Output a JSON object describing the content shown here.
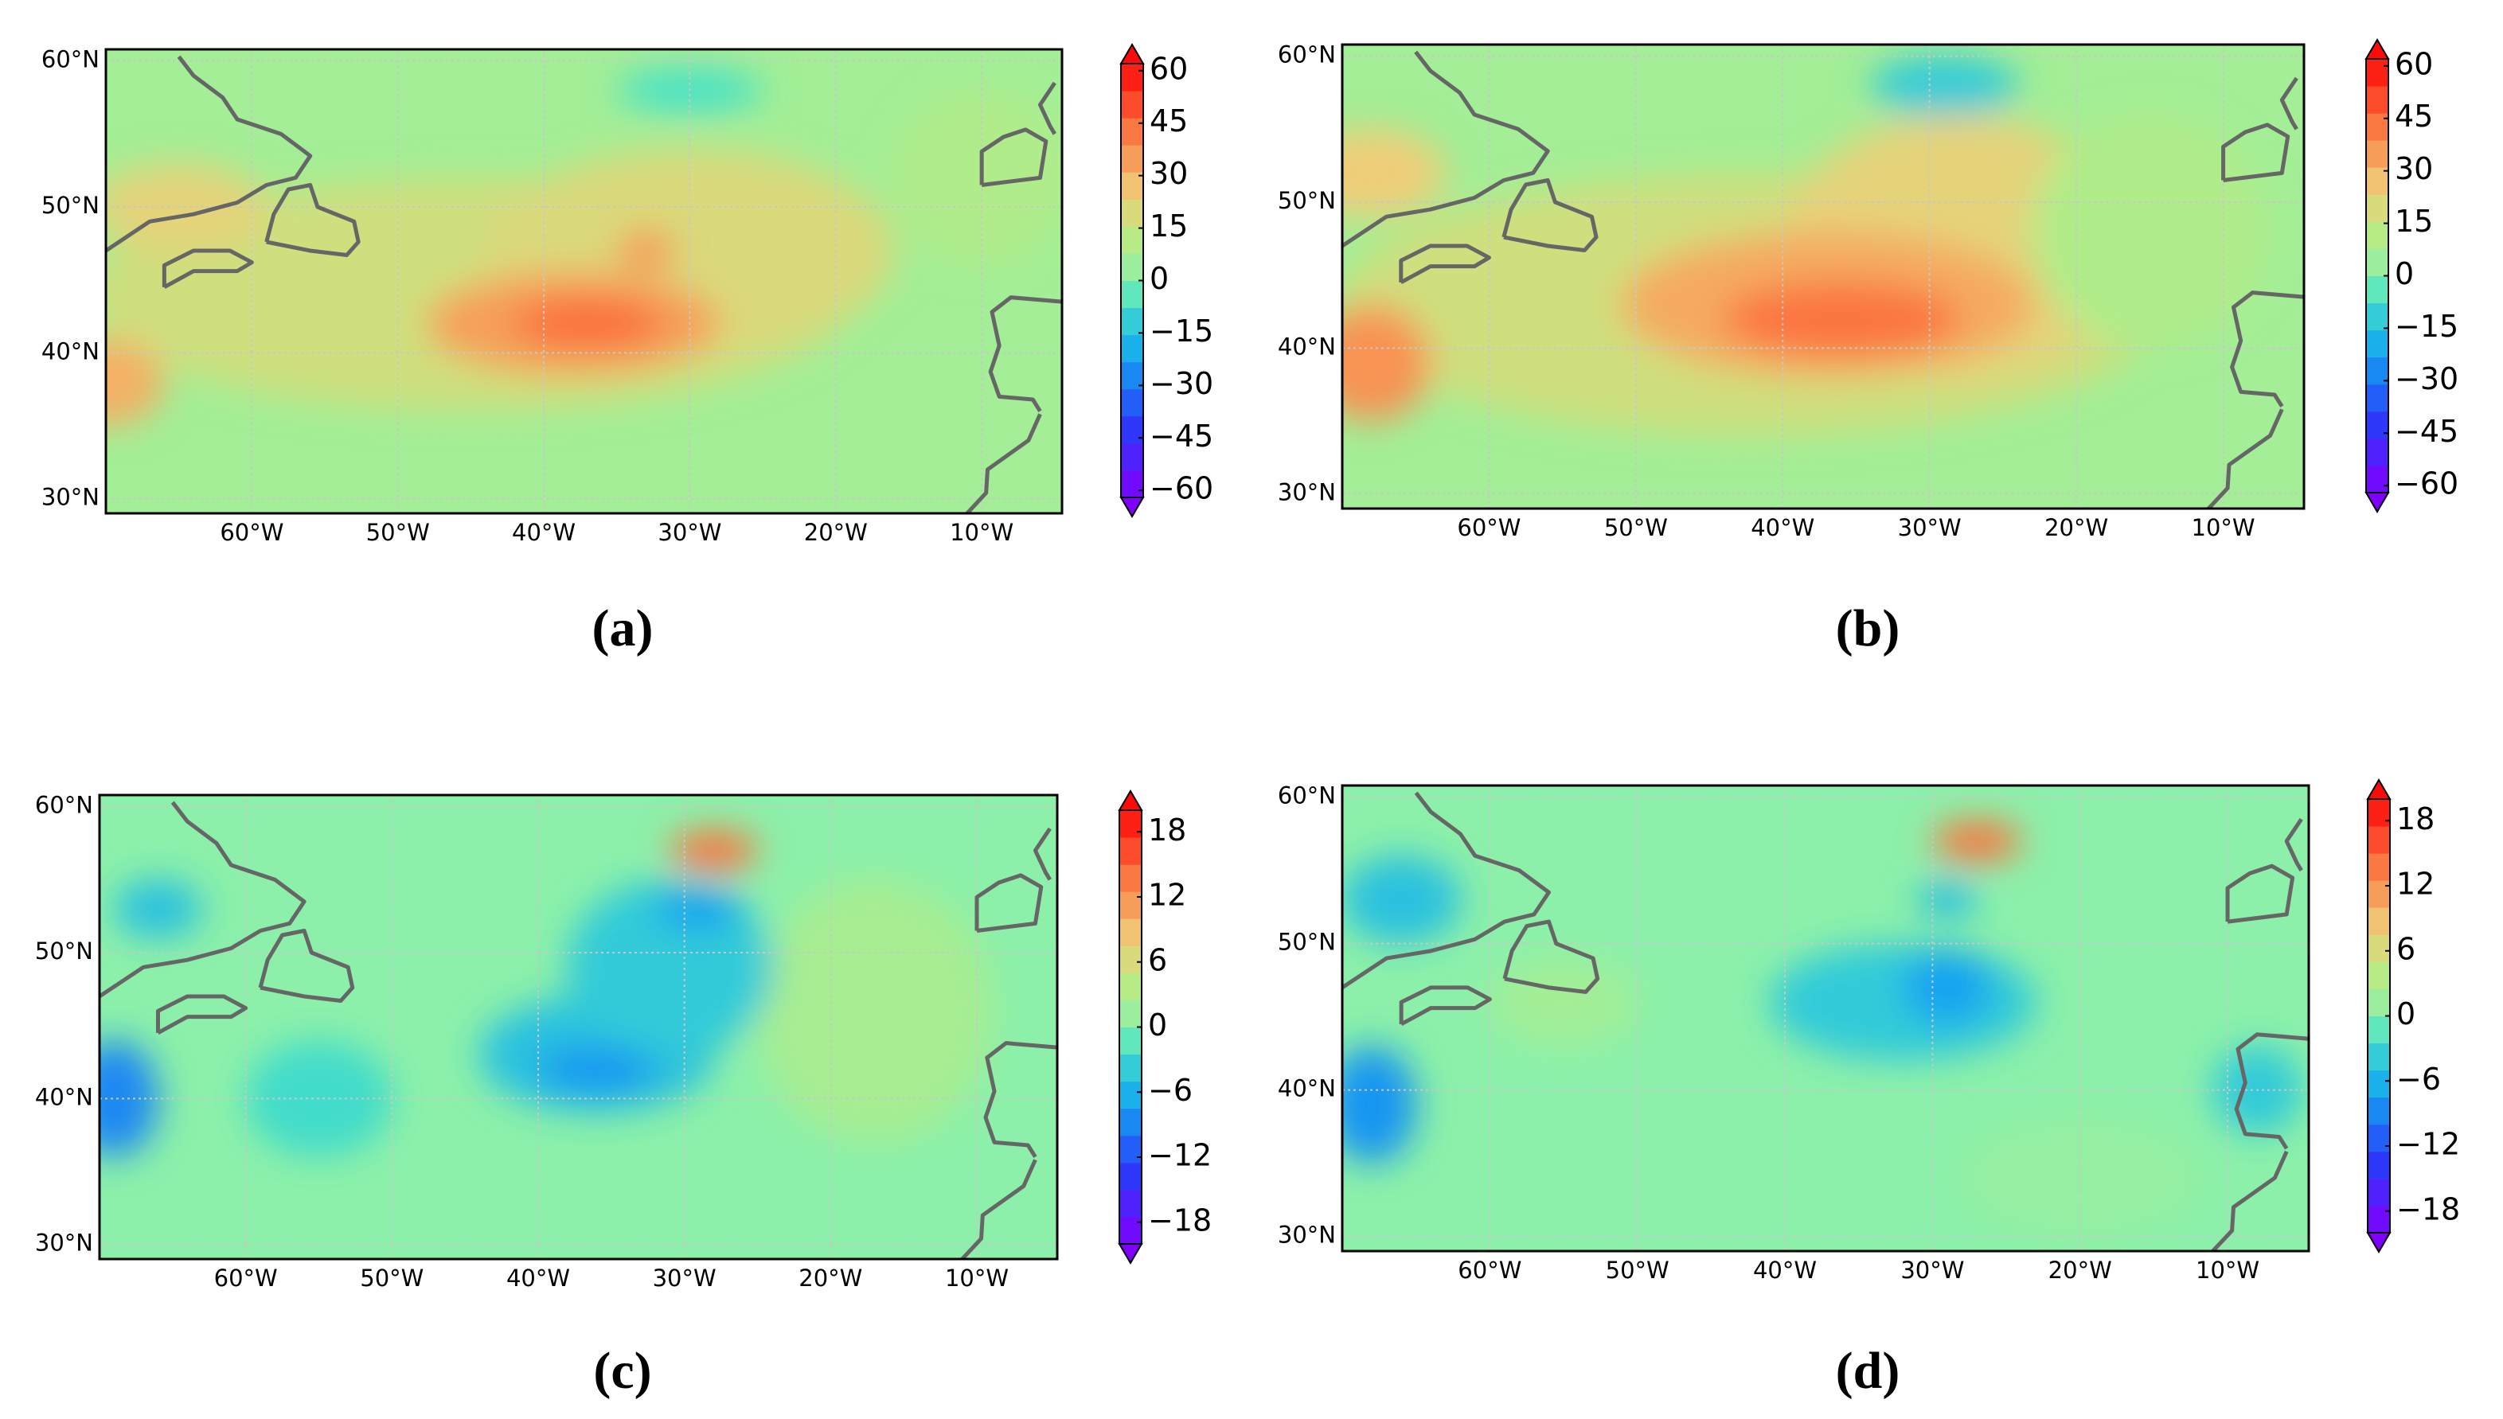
{
  "panels": [
    {
      "label": "(a)",
      "lat_range": [
        29,
        60.8
      ],
      "lon_range": [
        -70,
        -4.5
      ],
      "lat_ticks": [
        {
          "value": 30,
          "label": "30°N"
        },
        {
          "value": 40,
          "label": "40°N"
        },
        {
          "value": 50,
          "label": "50°N"
        },
        {
          "value": 60,
          "label": "60°N"
        }
      ],
      "lon_ticks": [
        {
          "value": -60,
          "label": "60°W"
        },
        {
          "value": -50,
          "label": "50°W"
        },
        {
          "value": -40,
          "label": "40°W"
        },
        {
          "value": -30,
          "label": "30°W"
        },
        {
          "value": -20,
          "label": "20°W"
        },
        {
          "value": -10,
          "label": "10°W"
        }
      ],
      "colorbar": {
        "range": [
          -62,
          62
        ],
        "ticks": [
          {
            "value": -60,
            "label": "−60"
          },
          {
            "value": -45,
            "label": "−45"
          },
          {
            "value": -30,
            "label": "−30"
          },
          {
            "value": -15,
            "label": "−15"
          },
          0,
          15,
          30,
          45,
          60
        ]
      }
    },
    {
      "label": "(b)",
      "lat_range": [
        29,
        60.8
      ],
      "lon_range": [
        -70,
        -4.5
      ],
      "lat_ticks": [
        {
          "value": 30,
          "label": "30°N"
        },
        {
          "value": 40,
          "label": "40°N"
        },
        {
          "value": 50,
          "label": "50°N"
        },
        {
          "value": 60,
          "label": "60°N"
        }
      ],
      "lon_ticks": [
        {
          "value": -60,
          "label": "60°W"
        },
        {
          "value": -50,
          "label": "50°W"
        },
        {
          "value": -40,
          "label": "40°W"
        },
        {
          "value": -30,
          "label": "30°W"
        },
        {
          "value": -20,
          "label": "20°W"
        },
        {
          "value": -10,
          "label": "10°W"
        }
      ],
      "colorbar": {
        "range": [
          -62,
          62
        ],
        "ticks": [
          {
            "value": -60,
            "label": "−60"
          },
          {
            "value": -45,
            "label": "−45"
          },
          {
            "value": -30,
            "label": "−30"
          },
          {
            "value": -15,
            "label": "−15"
          },
          0,
          15,
          30,
          45,
          60
        ]
      }
    },
    {
      "label": "(c)",
      "lat_range": [
        29,
        60.8
      ],
      "lon_range": [
        -70,
        -4.5
      ],
      "lat_ticks": [
        {
          "value": 30,
          "label": "30°N"
        },
        {
          "value": 40,
          "label": "40°N"
        },
        {
          "value": 50,
          "label": "50°N"
        },
        {
          "value": 60,
          "label": "60°N"
        }
      ],
      "lon_ticks": [
        {
          "value": -60,
          "label": "60°W"
        },
        {
          "value": -50,
          "label": "50°W"
        },
        {
          "value": -40,
          "label": "40°W"
        },
        {
          "value": -30,
          "label": "30°W"
        },
        {
          "value": -20,
          "label": "20°W"
        },
        {
          "value": -10,
          "label": "10°W"
        }
      ],
      "colorbar": {
        "range": [
          -20,
          20
        ],
        "ticks": [
          {
            "value": -18,
            "label": "−18"
          },
          {
            "value": -12,
            "label": "−12"
          },
          {
            "value": -6,
            "label": "−6"
          },
          0,
          6,
          12,
          18
        ]
      }
    },
    {
      "label": "(d)",
      "lat_range": [
        29,
        60.8
      ],
      "lon_range": [
        -70,
        -4.5
      ],
      "lat_ticks": [
        {
          "value": 30,
          "label": "30°N"
        },
        {
          "value": 40,
          "label": "40°N"
        },
        {
          "value": 50,
          "label": "50°N"
        },
        {
          "value": 60,
          "label": "60°N"
        }
      ],
      "lon_ticks": [
        {
          "value": -60,
          "label": "60°W"
        },
        {
          "value": -50,
          "label": "50°W"
        },
        {
          "value": -40,
          "label": "40°W"
        },
        {
          "value": -30,
          "label": "30°W"
        },
        {
          "value": -20,
          "label": "20°W"
        },
        {
          "value": -10,
          "label": "10°W"
        }
      ],
      "colorbar": {
        "range": [
          -20,
          20
        ],
        "ticks": [
          {
            "value": -18,
            "label": "−18"
          },
          {
            "value": -12,
            "label": "−12"
          },
          {
            "value": -6,
            "label": "−6"
          },
          0,
          6,
          12,
          18
        ]
      }
    }
  ]
}
